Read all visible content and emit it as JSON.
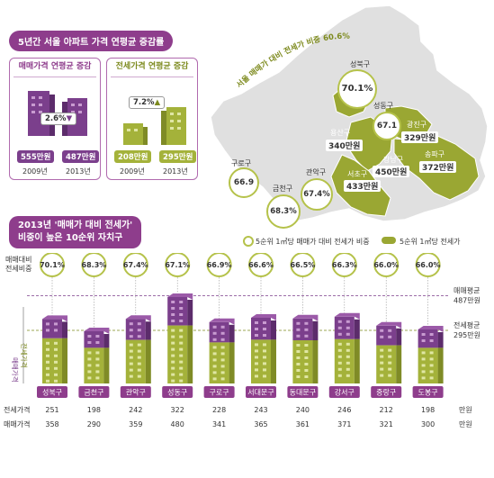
{
  "top_title": "5년간 서울 아파트 가격 연평균 증감률",
  "sale_box": {
    "title": "매매가격 연평균 증감",
    "rate": "2.6%",
    "arrow": "down-triangle-icon",
    "v2009": "555만원",
    "v2013": "487만원",
    "y2009": "2009년",
    "y2013": "2013년"
  },
  "lease_box": {
    "title": "전세가격 연평균 증감",
    "rate": "7.2%",
    "arrow": "up-triangle-icon",
    "v2009": "208만원",
    "v2013": "295만원",
    "y2009": "2009년",
    "y2013": "2013년"
  },
  "map": {
    "arc_label": "서울 매매가 대비 전세가 비중 60.6%",
    "districts": [
      {
        "name": "성북구",
        "value": "70.1%"
      },
      {
        "name": "성동구",
        "value": "67.1"
      },
      {
        "name": "용산구",
        "value": "340만원"
      },
      {
        "name": "광진구",
        "value": "329만원"
      },
      {
        "name": "강남구",
        "value": "450만원"
      },
      {
        "name": "송파구",
        "value": "372만원"
      },
      {
        "name": "서초구",
        "value": "433만원"
      },
      {
        "name": "구로구",
        "value": "66.9"
      },
      {
        "name": "관악구",
        "value": "67.4%"
      },
      {
        "name": "금천구",
        "value": "68.3%"
      }
    ],
    "legend_ratio": "5순위 1㎡당 매매가 대비 전세가 비중",
    "legend_lease": "5순위 1㎡당 전세가"
  },
  "chart_title": [
    "2013년 '매매가 대비 전세가'",
    "비중이 높은 10순위 자치구"
  ],
  "chart_data": {
    "type": "bar",
    "title": "2013년 '매매가 대비 전세가' 비중이 높은 10순위 자치구",
    "categories": [
      "성북구",
      "금천구",
      "관악구",
      "성동구",
      "구로구",
      "서대문구",
      "동대문구",
      "강서구",
      "중랑구",
      "도봉구"
    ],
    "ratio_label": "매매대비 전세비중",
    "ratio_labels": [
      "70.1%",
      "68.3%",
      "67.4%",
      "67.1%",
      "66.9%",
      "66.6%",
      "66.5%",
      "66.3%",
      "66.0%",
      "66.0%"
    ],
    "series": [
      {
        "name": "전세가격",
        "unit": "만원",
        "values": [
          251,
          198,
          242,
          322,
          228,
          243,
          240,
          246,
          212,
          198
        ]
      },
      {
        "name": "매매가격",
        "unit": "만원",
        "values": [
          358,
          290,
          359,
          480,
          341,
          365,
          361,
          371,
          321,
          300
        ]
      }
    ],
    "y_axis_sale_label": "매매가격",
    "y_axis_lease_label": "전세가격",
    "sale_avg_label": [
      "매매평균",
      "487만원"
    ],
    "lease_avg_label": [
      "전세평균",
      "295만원"
    ],
    "sale_avg": 487,
    "lease_avg": 295,
    "unit_label": "만원",
    "colors": {
      "sale": "#7b3f8c",
      "lease": "#a4b23a",
      "ratio_circle": "#b5c24a"
    }
  }
}
